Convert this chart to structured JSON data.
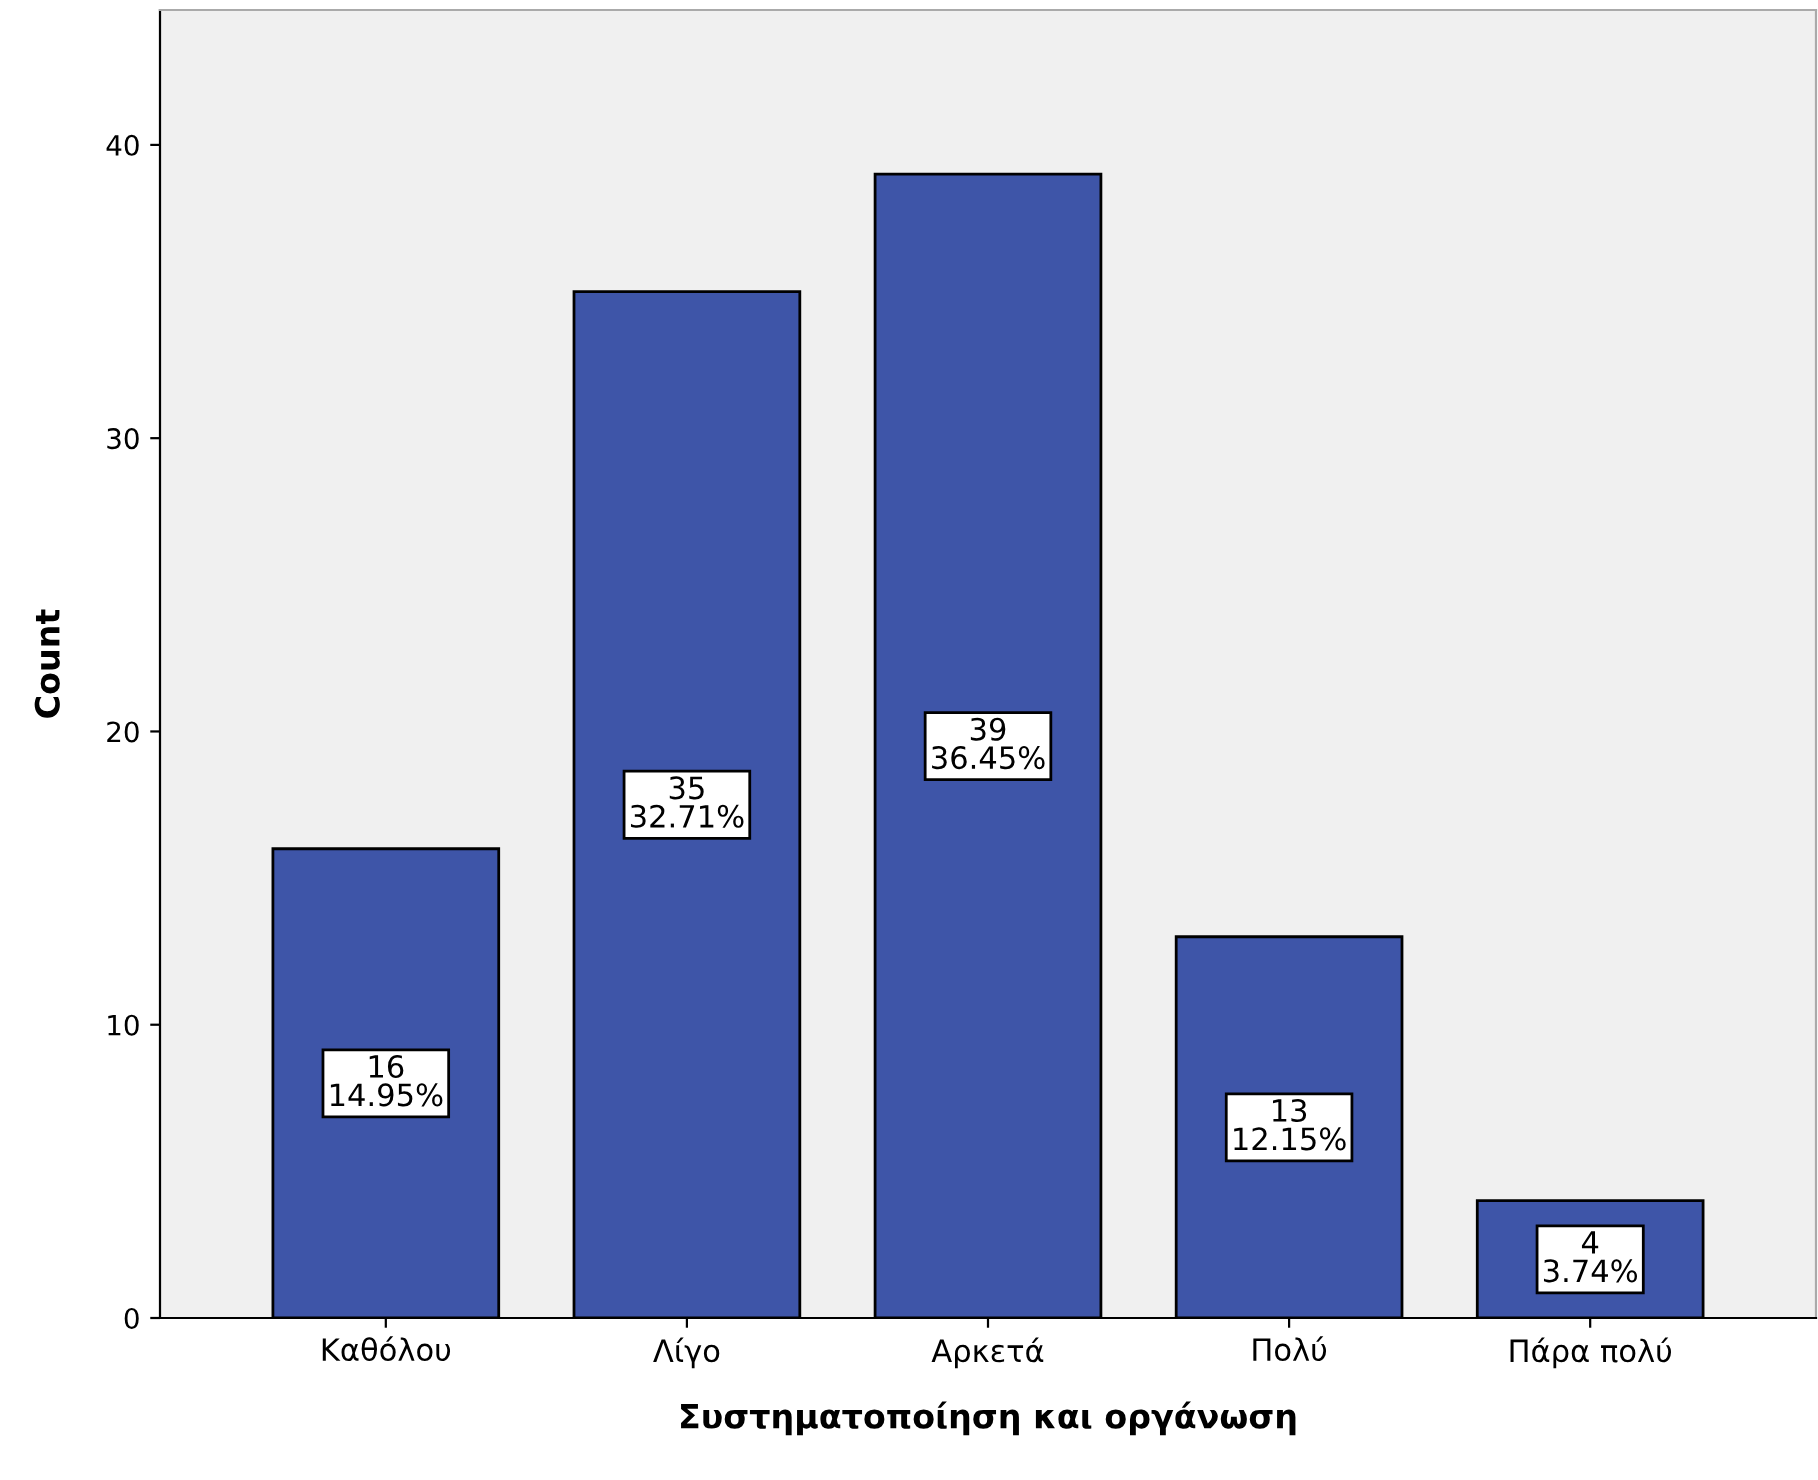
{
  "chart_data": {
    "type": "bar",
    "xlabel": "Συστηματοποίηση και οργάνωση",
    "ylabel": "Count",
    "categories": [
      "Καθόλου",
      "Λίγο",
      "Αρκετά",
      "Πολύ",
      "Πάρα πολύ"
    ],
    "values": [
      16,
      35,
      39,
      13,
      4
    ],
    "value_labels": [
      "16\n14.95%",
      "35\n32.71%",
      "39\n36.45%",
      "13\n12.15%",
      "4\n3.74%"
    ],
    "color": "#3e55a8",
    "ylim": [
      0,
      44.6
    ],
    "yticks": [
      0,
      10,
      20,
      30,
      40
    ],
    "grid": false,
    "legend": false
  }
}
